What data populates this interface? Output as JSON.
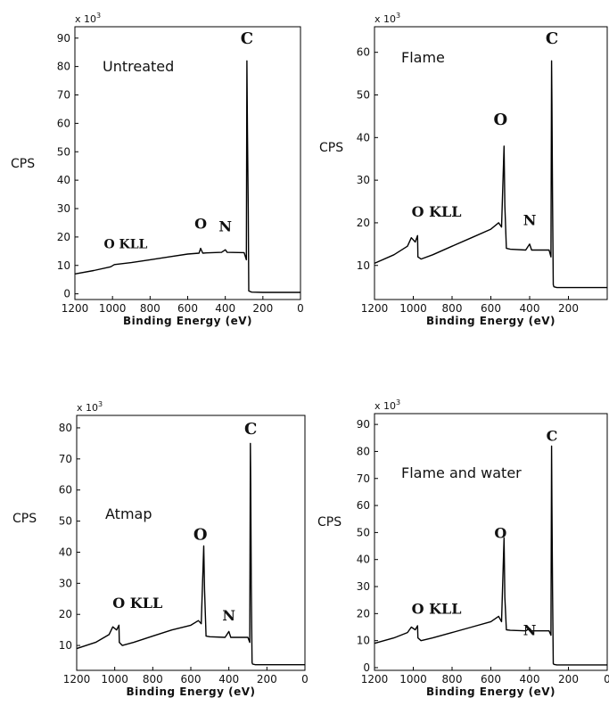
{
  "chart_data": [
    {
      "type": "line",
      "title": "Untreated",
      "xlabel": "Binding Energy (eV)",
      "ylabel": "CPS",
      "y_multiplier": "x 10",
      "y_multiplier_exp": "3",
      "xlim": [
        1200,
        0
      ],
      "ylim": [
        -2,
        94
      ],
      "xticks": [
        1200,
        1000,
        800,
        600,
        400,
        200,
        0
      ],
      "yticks": [
        0,
        10,
        20,
        30,
        40,
        50,
        60,
        70,
        80,
        90
      ],
      "peak_labels": [
        {
          "text": "C",
          "x": 285,
          "y": 88,
          "size": "large"
        },
        {
          "text": "O",
          "x": 531,
          "y": 23,
          "size": "medium"
        },
        {
          "text": "N",
          "x": 400,
          "y": 22,
          "size": "medium"
        },
        {
          "text": "O KLL",
          "x": 930,
          "y": 16,
          "size": "small"
        }
      ],
      "series": [
        {
          "x": [
            1200,
            1100,
            1010,
            990,
            900,
            800,
            700,
            600,
            540,
            531,
            520,
            500,
            420,
            400,
            390,
            300,
            288,
            285,
            282,
            278,
            275,
            260,
            200,
            100,
            0
          ],
          "y": [
            7,
            8.2,
            9.5,
            10.3,
            11,
            12,
            13,
            14,
            14.3,
            16,
            14.3,
            14.4,
            14.6,
            15.5,
            14.6,
            14.5,
            12,
            82,
            58,
            30,
            1,
            0.6,
            0.5,
            0.5,
            0.5
          ]
        }
      ]
    },
    {
      "type": "line",
      "title": "Flame",
      "xlabel": "Binding Energy (eV)",
      "ylabel": "CPS",
      "y_multiplier": "x 10",
      "y_multiplier_exp": "3",
      "xlim": [
        1200,
        0
      ],
      "ylim": [
        2,
        66
      ],
      "xticks": [
        1200,
        1000,
        800,
        600,
        400,
        200
      ],
      "yticks": [
        10,
        20,
        30,
        40,
        50,
        60
      ],
      "peak_labels": [
        {
          "text": "C",
          "x": 285,
          "y": 62,
          "size": "large"
        },
        {
          "text": "O",
          "x": 550,
          "y": 43,
          "size": "large"
        },
        {
          "text": "N",
          "x": 400,
          "y": 19.5,
          "size": "medium"
        },
        {
          "text": "O KLL",
          "x": 880,
          "y": 21.5,
          "size": "medium"
        }
      ],
      "series": [
        {
          "x": [
            1200,
            1100,
            1030,
            1010,
            990,
            978,
            976,
            960,
            900,
            800,
            700,
            600,
            560,
            545,
            532,
            528,
            520,
            500,
            420,
            400,
            390,
            300,
            290,
            287,
            285,
            282,
            278,
            275,
            260,
            200,
            100,
            0
          ],
          "y": [
            10.5,
            12.5,
            14.5,
            16.5,
            15.5,
            17,
            12,
            11.5,
            12.5,
            14.5,
            16.5,
            18.5,
            20,
            19,
            38,
            24,
            14,
            13.8,
            13.6,
            15,
            13.6,
            13.6,
            12,
            58,
            48,
            25,
            5.5,
            5,
            4.8,
            4.8,
            4.8,
            4.8
          ]
        }
      ]
    },
    {
      "type": "line",
      "title": "Atmap",
      "xlabel": "Binding Energy (eV)",
      "ylabel": "CPS",
      "y_multiplier": "x 10",
      "y_multiplier_exp": "3",
      "xlim": [
        1200,
        0
      ],
      "ylim": [
        2,
        84
      ],
      "xticks": [
        1200,
        1000,
        800,
        600,
        400,
        200,
        0
      ],
      "yticks": [
        10,
        20,
        30,
        40,
        50,
        60,
        70,
        80
      ],
      "peak_labels": [
        {
          "text": "C",
          "x": 285,
          "y": 78,
          "size": "large"
        },
        {
          "text": "O",
          "x": 550,
          "y": 44,
          "size": "large"
        },
        {
          "text": "N",
          "x": 400,
          "y": 18,
          "size": "medium"
        },
        {
          "text": "O KLL",
          "x": 880,
          "y": 22,
          "size": "medium"
        }
      ],
      "series": [
        {
          "x": [
            1200,
            1100,
            1030,
            1010,
            990,
            978,
            976,
            960,
            900,
            800,
            700,
            600,
            560,
            545,
            532,
            528,
            520,
            500,
            420,
            400,
            390,
            300,
            290,
            287,
            285,
            282,
            278,
            275,
            260,
            200,
            100,
            0
          ],
          "y": [
            9,
            11,
            13.5,
            16,
            15,
            16.5,
            11,
            10,
            11,
            13,
            15,
            16.5,
            18,
            17,
            42,
            28,
            13,
            12.8,
            12.6,
            14.5,
            12.6,
            12.6,
            11,
            75,
            62,
            30,
            4.5,
            4,
            3.8,
            3.8,
            3.8,
            3.8
          ]
        }
      ]
    },
    {
      "type": "line",
      "title": "Flame and water",
      "xlabel": "Binding Energy (eV)",
      "ylabel": "CPS",
      "y_multiplier": "x 10",
      "y_multiplier_exp": "3",
      "xlim": [
        1200,
        0
      ],
      "ylim": [
        -1,
        94
      ],
      "xticks": [
        1200,
        1000,
        800,
        600,
        400,
        200,
        0
      ],
      "yticks": [
        0,
        10,
        20,
        30,
        40,
        50,
        60,
        70,
        80,
        90
      ],
      "peak_labels": [
        {
          "text": "C",
          "x": 285,
          "y": 84,
          "size": "medium"
        },
        {
          "text": "O",
          "x": 550,
          "y": 48,
          "size": "medium"
        },
        {
          "text": "N",
          "x": 400,
          "y": 12,
          "size": "medium"
        },
        {
          "text": "O KLL",
          "x": 880,
          "y": 20,
          "size": "medium"
        }
      ],
      "series": [
        {
          "x": [
            1200,
            1100,
            1030,
            1010,
            990,
            978,
            976,
            960,
            900,
            800,
            700,
            600,
            560,
            545,
            532,
            528,
            520,
            500,
            420,
            400,
            390,
            300,
            290,
            287,
            285,
            282,
            278,
            275,
            260,
            200,
            100,
            0
          ],
          "y": [
            9,
            11,
            13,
            15,
            14,
            15.5,
            11,
            10,
            11,
            13,
            15,
            17,
            19,
            17,
            48,
            26,
            14,
            13.8,
            13.6,
            14.5,
            13.6,
            13.6,
            12,
            82,
            60,
            28,
            1.5,
            1.2,
            1,
            1,
            1,
            1
          ]
        }
      ]
    }
  ]
}
